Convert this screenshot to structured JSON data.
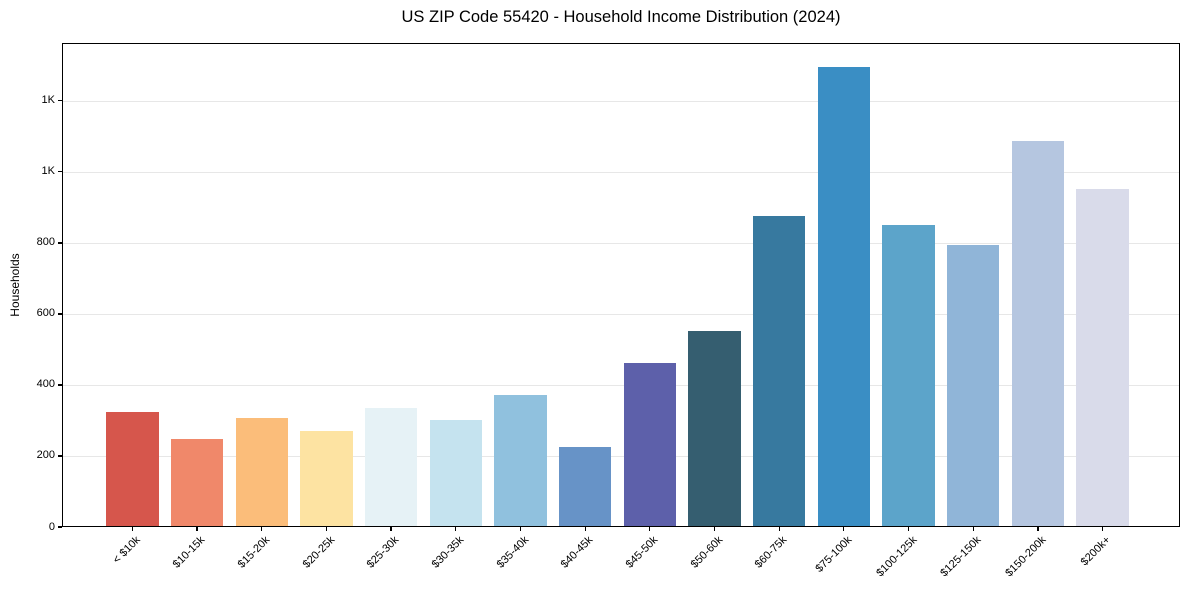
{
  "chart_data": {
    "type": "bar",
    "title": "US ZIP Code 55420 - Household Income Distribution (2024)",
    "xlabel": "",
    "ylabel": "Households",
    "categories": [
      "< $10k",
      "$10-15k",
      "$15-20k",
      "$20-25k",
      "$25-30k",
      "$30-35k",
      "$35-40k",
      "$40-45k",
      "$45-50k",
      "$50-60k",
      "$60-75k",
      "$75-100k",
      "$100-125k",
      "$125-150k",
      "$150-200k",
      "$200k+"
    ],
    "values": [
      324,
      248,
      307,
      270,
      335,
      301,
      372,
      225,
      462,
      552,
      876,
      1296,
      850,
      794,
      1086,
      953
    ],
    "bar_colors": [
      "#d6564c",
      "#f0886a",
      "#fbbd7a",
      "#fde3a2",
      "#e6f2f6",
      "#c5e3ef",
      "#90c1de",
      "#6793c7",
      "#5d60aa",
      "#355e70",
      "#37799f",
      "#3a8ec4",
      "#5ca4ca",
      "#90b5d8",
      "#b5c6e0",
      "#d9dbea"
    ],
    "yticks": [
      {
        "value": 0,
        "label": "0"
      },
      {
        "value": 200,
        "label": "200"
      },
      {
        "value": 400,
        "label": "400"
      },
      {
        "value": 600,
        "label": "600"
      },
      {
        "value": 800,
        "label": "800"
      },
      {
        "value": 1000,
        "label": "1K"
      },
      {
        "value": 1200,
        "label": "1K"
      }
    ],
    "ylim": [
      0,
      1363
    ],
    "grid": "horizontal",
    "legend": "none",
    "background_color": "#ffffff",
    "gridline_color": "#e7e7e7",
    "axis_color": "#000000"
  }
}
